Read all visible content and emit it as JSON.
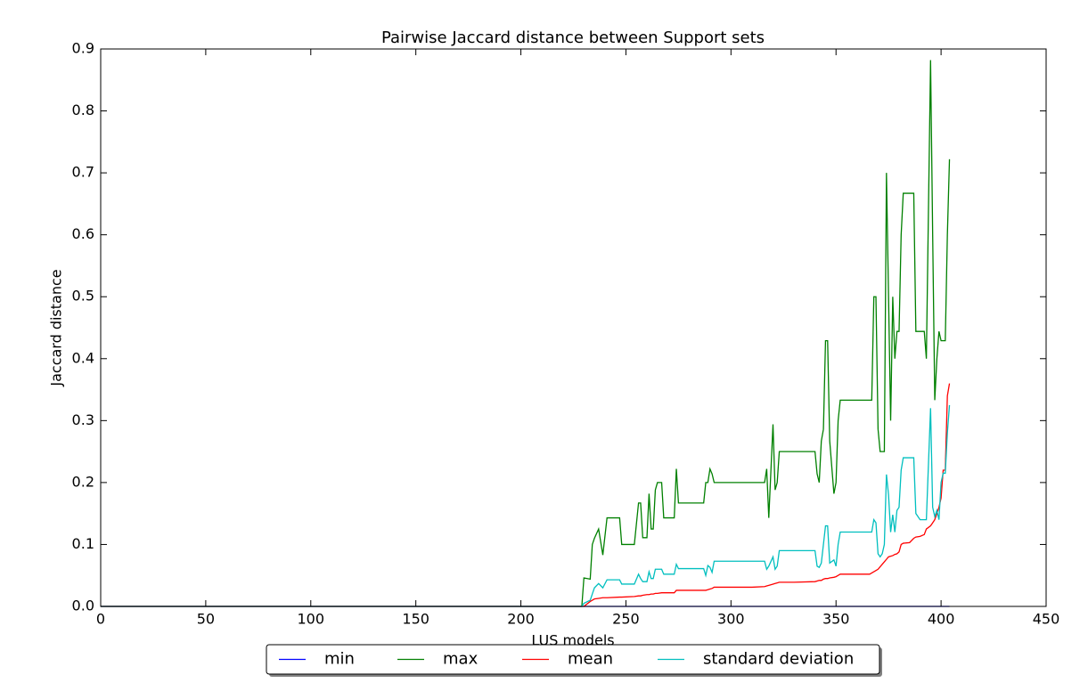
{
  "chart_data": {
    "type": "line",
    "title": "Pairwise Jaccard distance between Support sets",
    "x_label": "LUS models",
    "y_label": "Jaccard distance",
    "xlim": [
      0,
      450
    ],
    "xticks": [
      0,
      50,
      100,
      150,
      200,
      250,
      300,
      350,
      400,
      450
    ],
    "ylim": [
      0,
      0.9
    ],
    "yticks": [
      {
        "value": 0,
        "label": "0.0"
      },
      0.1,
      0.2,
      0.3,
      0.4,
      0.5,
      0.6,
      0.7,
      0.8,
      0.9
    ],
    "legend": "lower center",
    "x": [
      0,
      229,
      230,
      233,
      234,
      235,
      237,
      239,
      241,
      247,
      248,
      254,
      256,
      257,
      258,
      260,
      261,
      262,
      263,
      264,
      265,
      267,
      268,
      273,
      274,
      275,
      280,
      287,
      288,
      289,
      290,
      291,
      292,
      300,
      310,
      316,
      317,
      318,
      320,
      321,
      322,
      323,
      330,
      340,
      341,
      342,
      343,
      344,
      345,
      346,
      347,
      349,
      350,
      351,
      352,
      360,
      366,
      367,
      368,
      369,
      370,
      371,
      372,
      373,
      374,
      375,
      376,
      377,
      378,
      379,
      380,
      381,
      382,
      385,
      387,
      388,
      390,
      392,
      393,
      395,
      396,
      397,
      398,
      399,
      400,
      401,
      402,
      403,
      404
    ],
    "series": [
      {
        "name": "min",
        "color": "#0000ff",
        "values": [
          0,
          0,
          0,
          0,
          0,
          0,
          0,
          0,
          0,
          0,
          0,
          0,
          0,
          0,
          0,
          0,
          0,
          0,
          0,
          0,
          0,
          0,
          0,
          0,
          0,
          0,
          0,
          0,
          0,
          0,
          0,
          0,
          0,
          0,
          0,
          0,
          0,
          0,
          0,
          0,
          0,
          0,
          0,
          0,
          0,
          0,
          0,
          0,
          0,
          0,
          0,
          0,
          0,
          0,
          0,
          0,
          0,
          0,
          0,
          0,
          0,
          0,
          0,
          0,
          0,
          0,
          0,
          0,
          0,
          0,
          0,
          0,
          0,
          0,
          0,
          0,
          0,
          0,
          0,
          0,
          0,
          0,
          0,
          0,
          0,
          0,
          0,
          0,
          0
        ]
      },
      {
        "name": "max",
        "color": "#008000",
        "values": [
          0,
          0,
          0.046,
          0.044,
          0.1,
          0.11,
          0.125,
          0.083,
          0.143,
          0.143,
          0.1,
          0.1,
          0.167,
          0.167,
          0.111,
          0.111,
          0.182,
          0.125,
          0.125,
          0.188,
          0.2,
          0.2,
          0.143,
          0.143,
          0.222,
          0.167,
          0.167,
          0.167,
          0.2,
          0.2,
          0.222,
          0.214,
          0.2,
          0.2,
          0.2,
          0.2,
          0.222,
          0.143,
          0.294,
          0.188,
          0.2,
          0.25,
          0.25,
          0.25,
          0.214,
          0.2,
          0.267,
          0.286,
          0.429,
          0.429,
          0.267,
          0.182,
          0.2,
          0.3,
          0.333,
          0.333,
          0.333,
          0.333,
          0.5,
          0.5,
          0.286,
          0.25,
          0.25,
          0.25,
          0.7,
          0.5,
          0.3,
          0.5,
          0.4,
          0.444,
          0.444,
          0.6,
          0.667,
          0.667,
          0.667,
          0.444,
          0.444,
          0.444,
          0.4,
          0.882,
          0.6,
          0.333,
          0.4,
          0.444,
          0.429,
          0.429,
          0.429,
          0.6,
          0.722
        ]
      },
      {
        "name": "mean",
        "color": "#ff0000",
        "values": [
          0,
          0,
          0,
          0.008,
          0.01,
          0.012,
          0.013,
          0.014,
          0.014,
          0.015,
          0.015,
          0.016,
          0.017,
          0.017,
          0.018,
          0.019,
          0.019,
          0.02,
          0.02,
          0.021,
          0.021,
          0.022,
          0.022,
          0.022,
          0.026,
          0.026,
          0.026,
          0.026,
          0.026,
          0.027,
          0.028,
          0.029,
          0.031,
          0.031,
          0.031,
          0.032,
          0.033,
          0.034,
          0.036,
          0.037,
          0.038,
          0.039,
          0.039,
          0.04,
          0.041,
          0.042,
          0.042,
          0.044,
          0.045,
          0.045,
          0.046,
          0.047,
          0.048,
          0.05,
          0.052,
          0.052,
          0.052,
          0.054,
          0.056,
          0.058,
          0.06,
          0.064,
          0.068,
          0.072,
          0.076,
          0.08,
          0.081,
          0.082,
          0.084,
          0.085,
          0.088,
          0.1,
          0.102,
          0.103,
          0.11,
          0.112,
          0.113,
          0.116,
          0.125,
          0.13,
          0.135,
          0.14,
          0.15,
          0.16,
          0.175,
          0.22,
          0.22,
          0.34,
          0.36
        ]
      },
      {
        "name": "standard deviation",
        "color": "#00bfbf",
        "values": [
          0,
          0,
          0.005,
          0.01,
          0.02,
          0.03,
          0.037,
          0.03,
          0.043,
          0.043,
          0.036,
          0.036,
          0.052,
          0.045,
          0.04,
          0.04,
          0.056,
          0.045,
          0.045,
          0.06,
          0.06,
          0.06,
          0.052,
          0.052,
          0.068,
          0.061,
          0.061,
          0.061,
          0.05,
          0.066,
          0.063,
          0.055,
          0.073,
          0.073,
          0.073,
          0.073,
          0.06,
          0.065,
          0.08,
          0.06,
          0.065,
          0.09,
          0.09,
          0.09,
          0.065,
          0.063,
          0.07,
          0.1,
          0.13,
          0.13,
          0.07,
          0.075,
          0.065,
          0.1,
          0.12,
          0.12,
          0.12,
          0.12,
          0.14,
          0.135,
          0.085,
          0.08,
          0.085,
          0.1,
          0.213,
          0.18,
          0.12,
          0.148,
          0.12,
          0.155,
          0.16,
          0.22,
          0.24,
          0.24,
          0.24,
          0.15,
          0.14,
          0.14,
          0.14,
          0.32,
          0.16,
          0.145,
          0.155,
          0.14,
          0.2,
          0.215,
          0.215,
          0.28,
          0.325
        ]
      }
    ]
  }
}
